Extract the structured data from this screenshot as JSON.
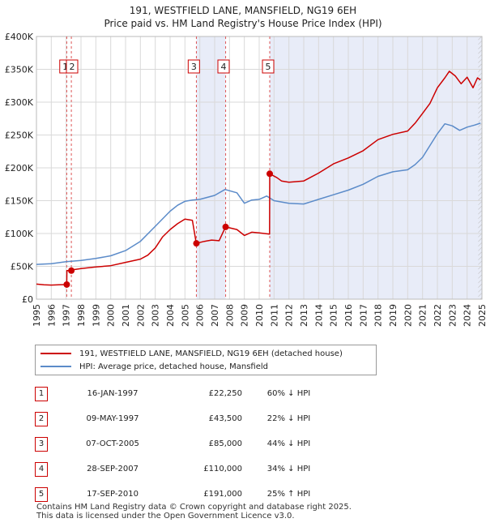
{
  "chart_data": {
    "type": "line",
    "title": "191, WESTFIELD LANE, MANSFIELD, NG19 6EH",
    "subtitle": "Price paid vs. HM Land Registry's House Price Index (HPI)",
    "xlim": [
      1995,
      2025
    ],
    "ylim": [
      0,
      400000
    ],
    "x_ticks": [
      "1995",
      "1996",
      "1997",
      "1998",
      "1999",
      "2000",
      "2001",
      "2002",
      "2003",
      "2004",
      "2005",
      "2006",
      "2007",
      "2008",
      "2009",
      "2010",
      "2011",
      "2012",
      "2013",
      "2014",
      "2015",
      "2016",
      "2017",
      "2018",
      "2019",
      "2020",
      "2021",
      "2022",
      "2023",
      "2024",
      "2025"
    ],
    "y_ticks": [
      {
        "value": 0,
        "label": "£0"
      },
      {
        "value": 50000,
        "label": "£50K"
      },
      {
        "value": 100000,
        "label": "£100K"
      },
      {
        "value": 150000,
        "label": "£150K"
      },
      {
        "value": 200000,
        "label": "£200K"
      },
      {
        "value": 250000,
        "label": "£250K"
      },
      {
        "value": 300000,
        "label": "£300K"
      },
      {
        "value": 350000,
        "label": "£350K"
      },
      {
        "value": 400000,
        "label": "£400K"
      }
    ],
    "series": [
      {
        "name": "191, WESTFIELD LANE, MANSFIELD, NG19 6EH (detached house)",
        "color": "#cc0000",
        "x": [
          1995.0,
          1995.5,
          1996.0,
          1996.5,
          1997.04,
          1997.05,
          1997.35,
          1997.36,
          1998.0,
          1999.0,
          2000.0,
          2001.0,
          2002.0,
          2002.5,
          2003.0,
          2003.5,
          2004.0,
          2004.5,
          2005.0,
          2005.5,
          2005.76,
          2005.77,
          2006.3,
          2006.8,
          2007.3,
          2007.73,
          2007.74,
          2008.5,
          2009.0,
          2009.5,
          2010.0,
          2010.7,
          2010.71,
          2011.2,
          2011.5,
          2012.0,
          2013.0,
          2014.0,
          2015.0,
          2016.0,
          2017.0,
          2018.0,
          2019.0,
          2020.0,
          2020.5,
          2021.0,
          2021.5,
          2022.0,
          2022.5,
          2022.8,
          2023.2,
          2023.6,
          2024.0,
          2024.4,
          2024.7,
          2024.9
        ],
        "y": [
          23000,
          22000,
          21500,
          22000,
          22250,
          43500,
          43500,
          44500,
          46500,
          49000,
          51000,
          56000,
          61000,
          67000,
          78000,
          95000,
          106000,
          115000,
          122000,
          120000,
          85000,
          85000,
          88000,
          90000,
          89000,
          110000,
          110000,
          106000,
          97000,
          102000,
          101000,
          99000,
          191000,
          185000,
          180000,
          178000,
          180000,
          192000,
          206000,
          215000,
          226000,
          243000,
          251000,
          256000,
          268000,
          283000,
          298000,
          322000,
          337000,
          347000,
          340000,
          328000,
          338000,
          322000,
          337000,
          334000
        ]
      },
      {
        "name": "HPI: Average price, detached house, Mansfield",
        "color": "#5b8bc9",
        "x": [
          1995.0,
          1996.0,
          1997.0,
          1998.0,
          1999.0,
          2000.0,
          2001.0,
          2002.0,
          2003.0,
          2004.0,
          2004.5,
          2005.0,
          2005.5,
          2006.0,
          2007.0,
          2007.7,
          2008.5,
          2009.0,
          2009.5,
          2010.0,
          2010.5,
          2011.0,
          2012.0,
          2013.0,
          2014.0,
          2015.0,
          2016.0,
          2017.0,
          2018.0,
          2019.0,
          2020.0,
          2020.5,
          2021.0,
          2021.5,
          2022.0,
          2022.5,
          2023.0,
          2023.5,
          2024.0,
          2024.5,
          2024.9
        ],
        "y": [
          53000,
          54000,
          57000,
          59000,
          62000,
          66000,
          74000,
          88000,
          111000,
          134000,
          143000,
          149000,
          151000,
          152000,
          158000,
          167000,
          162000,
          146000,
          151000,
          152000,
          157000,
          150000,
          146000,
          145000,
          152000,
          159000,
          166000,
          175000,
          187000,
          194000,
          197000,
          205000,
          216000,
          234000,
          252000,
          267000,
          264000,
          257000,
          262000,
          265000,
          268000
        ]
      }
    ],
    "sales": [
      {
        "num": "1",
        "date": "16-JAN-1997",
        "price": "£22,250",
        "hpi": "60% ↓ HPI",
        "x": 1997.04,
        "y": 22250,
        "label_x": 1996.95
      },
      {
        "num": "2",
        "date": "09-MAY-1997",
        "price": "£43,500",
        "hpi": "22% ↓ HPI",
        "x": 1997.35,
        "y": 43500,
        "label_x": 1997.4
      },
      {
        "num": "3",
        "date": "07-OCT-2005",
        "price": "£85,000",
        "hpi": "44% ↓ HPI",
        "x": 2005.77,
        "y": 85000,
        "label_x": 2005.6
      },
      {
        "num": "4",
        "date": "28-SEP-2007",
        "price": "£110,000",
        "hpi": "34% ↓ HPI",
        "x": 2007.74,
        "y": 110000,
        "label_x": 2007.6
      },
      {
        "num": "5",
        "date": "17-SEP-2010",
        "price": "£191,000",
        "hpi": "25% ↑ HPI",
        "x": 2010.71,
        "y": 191000,
        "label_x": 2010.6
      }
    ],
    "shaded_ranges": [
      [
        2005.77,
        2007.74
      ],
      [
        2010.71,
        2025.0
      ]
    ],
    "hatched_range": [
      2024.75,
      2025.0
    ],
    "grid": true
  },
  "legend": {
    "property_label": "191, WESTFIELD LANE, MANSFIELD, NG19 6EH (detached house)",
    "hpi_label": "HPI: Average price, detached house, Mansfield",
    "property_color": "#cc0000",
    "hpi_color": "#5b8bc9"
  },
  "footer": {
    "line1": "Contains HM Land Registry data © Crown copyright and database right 2025.",
    "line2": "This data is licensed under the Open Government Licence v3.0."
  }
}
